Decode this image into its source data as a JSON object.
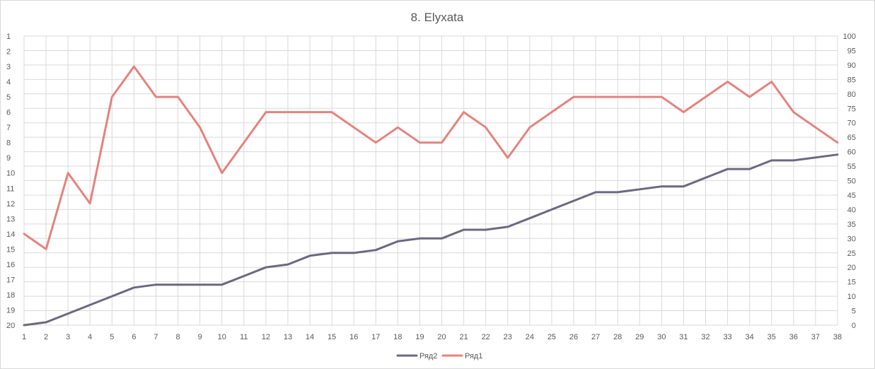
{
  "chart_data": {
    "type": "line",
    "title": "8. Elyxata",
    "xlabel": "",
    "ylabel_left": "",
    "ylabel_right": "",
    "categories": [
      1,
      2,
      3,
      4,
      5,
      6,
      7,
      8,
      9,
      10,
      11,
      12,
      13,
      14,
      15,
      16,
      17,
      18,
      19,
      20,
      21,
      22,
      23,
      24,
      25,
      26,
      27,
      28,
      29,
      30,
      31,
      32,
      33,
      34,
      35,
      36,
      37,
      38
    ],
    "left_axis": {
      "ticks": [
        1,
        2,
        3,
        4,
        5,
        6,
        7,
        8,
        9,
        10,
        11,
        12,
        13,
        14,
        15,
        16,
        17,
        18,
        19,
        20
      ],
      "reversed": true,
      "ylim": [
        1,
        20
      ]
    },
    "right_axis": {
      "ticks": [
        0,
        5,
        10,
        15,
        20,
        25,
        30,
        35,
        40,
        45,
        50,
        55,
        60,
        65,
        70,
        75,
        80,
        85,
        90,
        95,
        100
      ],
      "ylim": [
        0,
        100
      ]
    },
    "grid": true,
    "legend_position": "bottom",
    "series": [
      {
        "name": "Ряд2",
        "axis": "right",
        "color": "#6b6880",
        "values": [
          0,
          1,
          4,
          7,
          10,
          13,
          14,
          14,
          14,
          14,
          17,
          20,
          21,
          24,
          25,
          25,
          26,
          29,
          30,
          30,
          33,
          33,
          34,
          37,
          40,
          43,
          46,
          46,
          47,
          48,
          48,
          51,
          54,
          54,
          57,
          57,
          58,
          59
        ]
      },
      {
        "name": "Ряд1",
        "axis": "left",
        "color": "#e4837e",
        "values": [
          14,
          15,
          10,
          12,
          5,
          3,
          5,
          5,
          7,
          10,
          8,
          6,
          6,
          6,
          6,
          7,
          8,
          7,
          8,
          8,
          6,
          7,
          9,
          7,
          6,
          5,
          5,
          5,
          5,
          5,
          6,
          5,
          4,
          5,
          4,
          6,
          7,
          8
        ]
      }
    ]
  }
}
